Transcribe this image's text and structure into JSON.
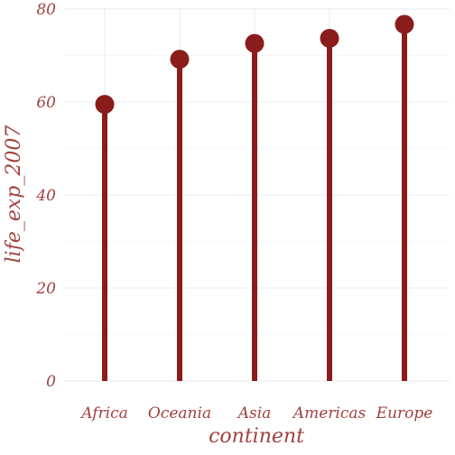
{
  "chart_data": {
    "type": "lollipop",
    "categories": [
      "Africa",
      "Oceania",
      "Asia",
      "Americas",
      "Europe"
    ],
    "values": [
      59.5,
      69.2,
      72.6,
      73.7,
      76.7
    ],
    "xlabel": "continent",
    "ylabel": "life_exp_2007",
    "ylim": [
      0,
      80
    ],
    "yticks": [
      0,
      20,
      40,
      60,
      80
    ],
    "grid": true,
    "legend": "none",
    "colors": {
      "mark": "#8b1c1c",
      "text": "#a0413f",
      "grid": "#ebebeb"
    }
  }
}
